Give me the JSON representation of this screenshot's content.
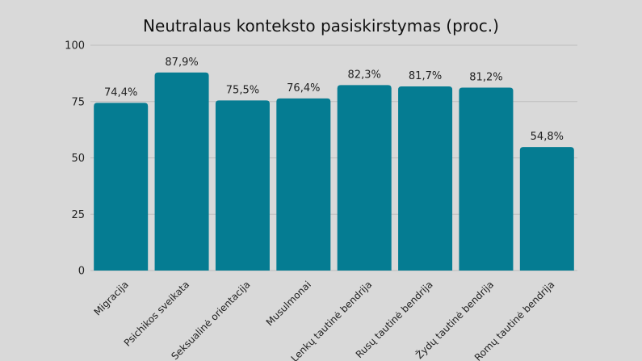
{
  "chart_data": {
    "type": "bar",
    "title": "Neutralaus konteksto pasiskirstymas (proc.)",
    "xlabel": "",
    "ylabel": "",
    "ylim": [
      0,
      100
    ],
    "yticks": [
      "0",
      "25",
      "50",
      "75",
      "100"
    ],
    "ytick_values": [
      0,
      25,
      50,
      75,
      100
    ],
    "grid": true,
    "legend": "none",
    "bar_color": "#057c92",
    "categories": [
      "Migracija",
      "Psichikos sveikata",
      "Seksualinė orientacija",
      "Musulmonai",
      "Lenkų tautinė bendrija",
      "Rusų tautinė bendrija",
      "Žydų tautinė bendrija",
      "Romų tautinė bendrija"
    ],
    "values": [
      74.4,
      87.9,
      75.5,
      76.4,
      82.3,
      81.7,
      81.2,
      54.8
    ],
    "data_labels": [
      "74,4%",
      "87,9%",
      "75,5%",
      "76,4%",
      "82,3%",
      "81,7%",
      "81,2%",
      "54,8%"
    ]
  }
}
